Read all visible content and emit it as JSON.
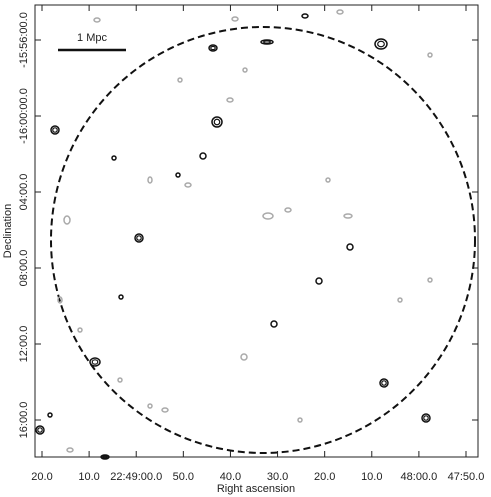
{
  "chart_data": {
    "type": "contour",
    "xlabel": "Right ascension",
    "ylabel": "Declination",
    "xtick_labels": [
      "20.0",
      "10.0",
      "22:49:00.0",
      "50.0",
      "40.0",
      "30.0",
      "20.0",
      "10.0",
      "48:00.0",
      "47:50.0"
    ],
    "ytick_labels": [
      "-15:56:00.0",
      "-16:00:00.0",
      "04:00.0",
      "08:00.0",
      "12:00.0",
      "16:00.0"
    ],
    "scale_bar": "1 Mpc"
  }
}
